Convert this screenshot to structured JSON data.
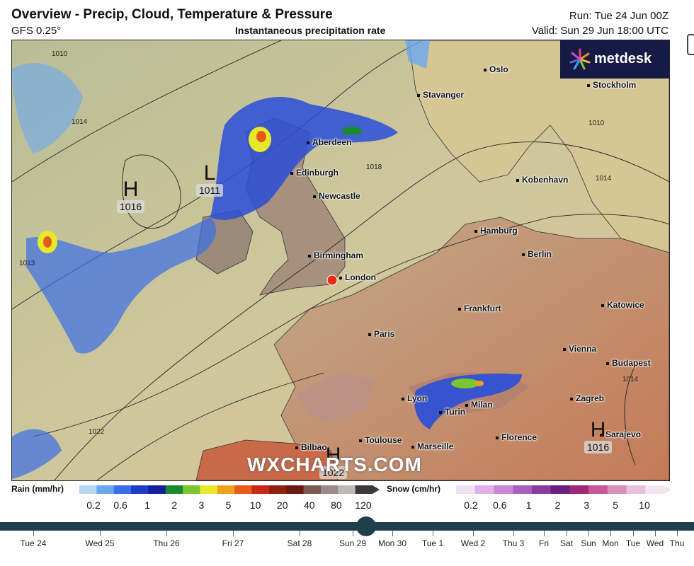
{
  "header": {
    "title": "Overview - Precip, Cloud, Temperature & Pressure",
    "model": "GFS 0.25°",
    "subtitle": "Instantaneous precipitation rate",
    "run": "Run: Tue 24 Jun 00Z",
    "valid": "Valid: Sun 29 Jun 18:00 UTC"
  },
  "brand": {
    "name": "metdesk",
    "watermark": "WXCHARTS.COM"
  },
  "cities": [
    {
      "name": "Oslo"
    },
    {
      "name": "Stavanger"
    },
    {
      "name": "Stockholm"
    },
    {
      "name": "Aberdeen"
    },
    {
      "name": "Edinburgh"
    },
    {
      "name": "Newcastle"
    },
    {
      "name": "Kobenhavn"
    },
    {
      "name": "Hamburg"
    },
    {
      "name": "Berlin"
    },
    {
      "name": "Birmingham"
    },
    {
      "name": "London"
    },
    {
      "name": "Frankfurt"
    },
    {
      "name": "Katowice"
    },
    {
      "name": "Paris"
    },
    {
      "name": "Vienna"
    },
    {
      "name": "Budapest"
    },
    {
      "name": "Lyon"
    },
    {
      "name": "Milan"
    },
    {
      "name": "Turin"
    },
    {
      "name": "Zagreb"
    },
    {
      "name": "Toulouse"
    },
    {
      "name": "Marseille"
    },
    {
      "name": "Florence"
    },
    {
      "name": "Bilbao"
    },
    {
      "name": "Sarajevo"
    }
  ],
  "pressure_centers": [
    {
      "type": "H",
      "value": "1016"
    },
    {
      "type": "L",
      "value": "1011"
    },
    {
      "type": "H",
      "value": "1022"
    },
    {
      "type": "H",
      "value": "1016"
    }
  ],
  "isobar_labels": [
    "1010",
    "1014",
    "1018",
    "1022",
    "1010",
    "1014",
    "1014",
    "1013"
  ],
  "legend": {
    "rain": {
      "title": "Rain (mm/hr)",
      "ticks": [
        "0.2",
        "0.6",
        "1",
        "2",
        "3",
        "5",
        "10",
        "20",
        "40",
        "80",
        "120"
      ],
      "colors": [
        "#b8d8f0",
        "#6aa8f0",
        "#3a6ee8",
        "#1e3cc8",
        "#12209a",
        "#1a8a30",
        "#7ac830",
        "#e8e82a",
        "#f0a020",
        "#e85a1a",
        "#c82818",
        "#902010",
        "#6a1a10",
        "#7a5a50",
        "#9a8a88",
        "#c0b8b8",
        "#3a3a3a"
      ]
    },
    "snow": {
      "title": "Snow (cm/hr)",
      "ticks": [
        "0.2",
        "0.6",
        "1",
        "2",
        "3",
        "5",
        "10"
      ],
      "colors": [
        "#f0e0f0",
        "#e0b0e8",
        "#c888d8",
        "#a860c0",
        "#8a3aa0",
        "#6a2080",
        "#a02878",
        "#c85898",
        "#d890b8",
        "#e8c0d8",
        "#f4e4ee"
      ]
    }
  },
  "timeline": {
    "days": [
      "Tue 24",
      "Wed 25",
      "Thu 26",
      "Fri 27",
      "Sat 28",
      "Sun 29",
      "Mon 30",
      "Tue 1",
      "Wed 2",
      "Thu 3",
      "Fri",
      "Sat",
      "Sun",
      "Mon",
      "Tue",
      "Wed",
      "Thu"
    ],
    "current_day": "Sun 29"
  },
  "colors": {
    "timeline": "#1f3f4d",
    "logo_bg": "#151b45",
    "london_marker": "#e82a1a"
  }
}
